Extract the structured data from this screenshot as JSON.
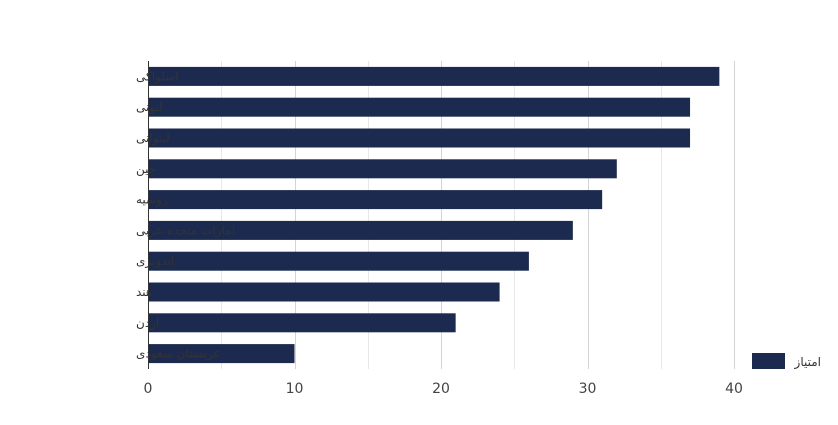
{
  "chart_data": {
    "type": "bar",
    "orientation": "horizontal",
    "categories": [
      "اسلواکی",
      "لتونی",
      "لیتوانی",
      "چین",
      "روسیه",
      "امارات متحده عربی",
      "اندونزی",
      "هند",
      "اردن",
      "عربستان سعودی"
    ],
    "series": [
      {
        "name": "امتیاز",
        "values": [
          39,
          37,
          37,
          32,
          31,
          29,
          26,
          24,
          21,
          10
        ],
        "color": "#1b2a4e"
      }
    ],
    "xlim": [
      0,
      40
    ],
    "xticks": [
      0,
      10,
      20,
      30,
      40
    ],
    "grid": true,
    "legend_position": "right"
  }
}
